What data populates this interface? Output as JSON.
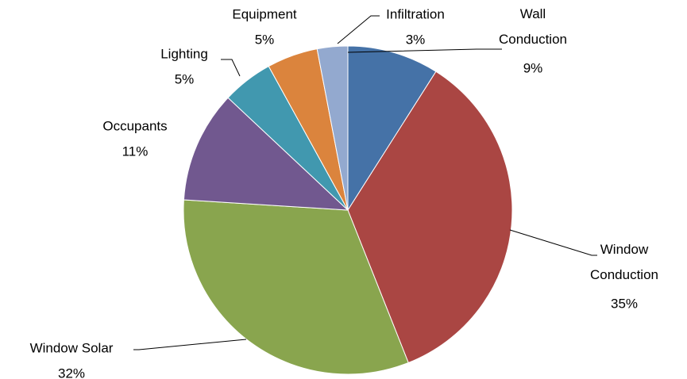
{
  "chart_data": {
    "type": "pie",
    "categories": [
      "Wall Conduction",
      "Window Conduction",
      "Window Solar",
      "Occupants",
      "Lighting",
      "Equipment",
      "Infiltration"
    ],
    "values": [
      9,
      35,
      32,
      11,
      5,
      5,
      3
    ],
    "value_labels": [
      "9%",
      "35%",
      "32%",
      "11%",
      "5%",
      "5%",
      "3%"
    ],
    "colors": [
      "#4572a7",
      "#aa4643",
      "#89a54e",
      "#71588f",
      "#4198af",
      "#db843d",
      "#93a9cf"
    ]
  }
}
